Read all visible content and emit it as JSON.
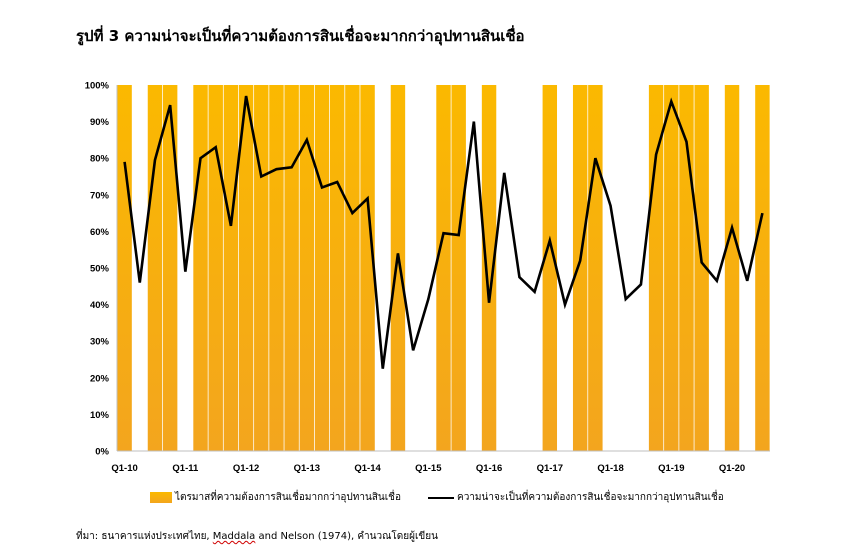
{
  "title": "รูปที่ 3 ความน่าจะเป็นที่ความต้องการสินเชื่อจะมากกว่าอุปทานสินเชื่อ",
  "legend": {
    "bars": "ไตรมาสที่ความต้องการสินเชื่อมากกว่าอุปทานสินเชื่อ",
    "line": "ความน่าจะเป็นที่ความต้องการสินเชื่อจะมากกว่าอุปทานสินเชื่อ"
  },
  "source": {
    "prefix": "ที่มา: ธนาคารแห่งประเทศไทย, ",
    "underlined": "Maddala",
    "suffix": " and Nelson (1974), คำนวณโดยผู้เขียน"
  },
  "colors": {
    "bar_top": "#fbb900",
    "bar_bottom": "#f3a51e",
    "line": "#000000"
  },
  "chart_data": {
    "type": "line",
    "x_tick_labels": [
      "Q1-10",
      "Q1-11",
      "Q1-12",
      "Q1-13",
      "Q1-14",
      "Q1-15",
      "Q1-16",
      "Q1-17",
      "Q1-18",
      "Q1-19",
      "Q1-20"
    ],
    "y_tick_labels": [
      "0%",
      "10%",
      "20%",
      "30%",
      "40%",
      "50%",
      "60%",
      "70%",
      "80%",
      "90%",
      "100%"
    ],
    "ylim": [
      0,
      100
    ],
    "grid": false,
    "legend_position": "bottom",
    "series": [
      {
        "name": "ความน่าจะเป็นที่ความต้องการสินเชื่อจะมากกว่าอุปทานสินเชื่อ",
        "type": "line",
        "values": [
          79,
          46,
          79.5,
          94.5,
          49,
          80,
          83,
          61.5,
          97,
          75,
          77,
          77.5,
          85,
          72,
          73.5,
          65,
          69,
          22.5,
          54,
          27.5,
          41.5,
          59.5,
          59,
          90,
          40.5,
          76,
          47.5,
          43.5,
          57.5,
          40,
          52,
          80,
          67,
          41.5,
          45.5,
          81,
          95.5,
          84.5,
          51.5,
          46.5,
          61,
          46.5,
          65
        ]
      },
      {
        "name": "ไตรมาสที่ความต้องการสินเชื่อมากกว่าอุปทานสินเชื่อ",
        "type": "bar",
        "values": [
          1,
          0,
          1,
          1,
          0,
          1,
          1,
          1,
          1,
          1,
          1,
          1,
          1,
          1,
          1,
          1,
          1,
          0,
          1,
          0,
          0,
          1,
          1,
          0,
          1,
          0,
          0,
          0,
          1,
          0,
          1,
          1,
          0,
          0,
          0,
          1,
          1,
          1,
          1,
          0,
          1,
          0,
          1
        ]
      }
    ]
  }
}
